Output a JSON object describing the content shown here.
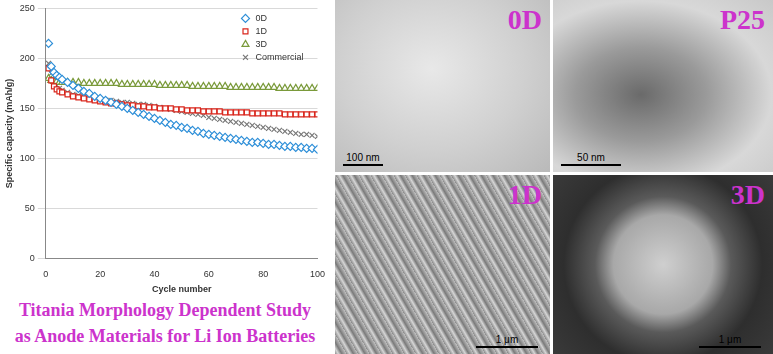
{
  "chart_data": {
    "type": "scatter",
    "x_label": "Cycle number",
    "y_label": "Specific capacity (mAh/g)",
    "x": [
      1,
      2,
      3,
      4,
      5,
      6,
      8,
      10,
      12,
      14,
      16,
      18,
      20,
      22,
      24,
      26,
      28,
      30,
      32,
      34,
      36,
      38,
      40,
      42,
      44,
      46,
      48,
      50,
      52,
      54,
      56,
      58,
      60,
      62,
      64,
      66,
      68,
      70,
      72,
      74,
      76,
      78,
      80,
      82,
      84,
      86,
      88,
      90,
      92,
      94,
      96,
      98,
      100
    ],
    "series": [
      {
        "name": "0D",
        "color": "#2e8fd8",
        "marker": "diamond",
        "line_style": "none",
        "values": [
          215,
          192,
          186,
          183,
          181,
          179,
          176,
          173,
          170,
          167,
          165,
          162,
          160,
          158,
          156,
          154,
          152,
          150,
          148,
          146,
          144,
          142,
          140,
          138,
          136,
          134,
          133,
          131,
          130,
          128,
          127,
          125,
          124,
          123,
          122,
          121,
          120,
          119,
          118,
          117,
          116,
          116,
          115,
          114,
          114,
          113,
          112,
          112,
          111,
          111,
          110,
          110,
          109
        ]
      },
      {
        "name": "1D",
        "color": "#d9261c",
        "marker": "square",
        "line_style": "none",
        "values": [
          190,
          178,
          172,
          169,
          167,
          166,
          164,
          162,
          161,
          160,
          159,
          158,
          157,
          156,
          155,
          155,
          154,
          153,
          153,
          152,
          152,
          151,
          151,
          150,
          150,
          150,
          149,
          149,
          148,
          148,
          148,
          147,
          147,
          147,
          147,
          146,
          146,
          146,
          146,
          146,
          145,
          145,
          145,
          145,
          145,
          145,
          144,
          144,
          144,
          144,
          144,
          144,
          144
        ]
      },
      {
        "name": "3D",
        "color": "#7a9a3a",
        "marker": "triangle",
        "line_style": "none",
        "values": [
          180,
          178,
          177,
          177,
          176,
          176,
          176,
          176,
          176,
          175,
          175,
          175,
          175,
          175,
          175,
          175,
          174,
          174,
          174,
          174,
          174,
          174,
          174,
          173,
          173,
          173,
          173,
          173,
          173,
          172,
          172,
          172,
          172,
          172,
          172,
          172,
          171,
          171,
          171,
          171,
          171,
          171,
          171,
          171,
          171,
          170,
          170,
          170,
          170,
          170,
          170,
          170,
          170
        ]
      },
      {
        "name": "Commercial",
        "color": "#777777",
        "marker": "x",
        "line_style": "none",
        "values": [
          195,
          185,
          178,
          173,
          170,
          168,
          166,
          164,
          163,
          162,
          161,
          160,
          159,
          158,
          158,
          157,
          156,
          156,
          155,
          154,
          154,
          153,
          152,
          151,
          150,
          149,
          148,
          147,
          146,
          145,
          144,
          143,
          141,
          140,
          139,
          138,
          137,
          136,
          135,
          134,
          133,
          132,
          131,
          130,
          129,
          128,
          127,
          126,
          125,
          124,
          124,
          123,
          122
        ]
      }
    ],
    "xlim": [
      0,
      100
    ],
    "xticks": [
      0,
      20,
      40,
      60,
      80,
      100
    ],
    "ylim": [
      0,
      250
    ],
    "yticks": [
      0,
      50,
      100,
      150,
      200,
      250
    ],
    "grid": true,
    "legend": "upper right"
  },
  "caption": [
    "Titania Morphology Dependent Study",
    "as Anode Materials for Li Ion Batteries"
  ],
  "panels": [
    {
      "label": "0D",
      "scale_bar": "100 nm"
    },
    {
      "label": "P25",
      "scale_bar": "50 nm"
    },
    {
      "label": "1D",
      "scale_bar": "1 μm"
    },
    {
      "label": "3D",
      "scale_bar": "1 μm"
    }
  ]
}
